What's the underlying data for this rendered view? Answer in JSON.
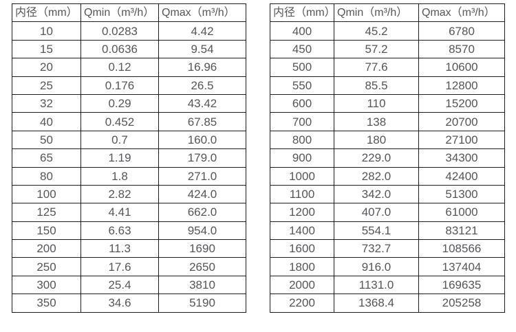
{
  "colors": {
    "border": "#1c1c1c",
    "text": "#55565a",
    "background": "#ffffff"
  },
  "chart_data": [
    {
      "type": "table",
      "title": "",
      "headers": [
        "内径（mm）",
        "Qmin（m³/h）",
        "Qmax（m³/h）"
      ],
      "rows": [
        [
          "10",
          "0.0283",
          "4.42"
        ],
        [
          "15",
          "0.0636",
          "9.54"
        ],
        [
          "20",
          "0.12",
          "16.96"
        ],
        [
          "25",
          "0.176",
          "26.5"
        ],
        [
          "32",
          "0.29",
          "43.42"
        ],
        [
          "40",
          "0.452",
          "67.85"
        ],
        [
          "50",
          "0.7",
          "160.0"
        ],
        [
          "65",
          "1.19",
          "179.0"
        ],
        [
          "80",
          "1.8",
          "271.0"
        ],
        [
          "100",
          "2.82",
          "424.0"
        ],
        [
          "125",
          "4.41",
          "662.0"
        ],
        [
          "150",
          "6.63",
          "954.0"
        ],
        [
          "200",
          "11.3",
          "1690"
        ],
        [
          "250",
          "17.6",
          "2650"
        ],
        [
          "300",
          "25.4",
          "3810"
        ],
        [
          "350",
          "34.6",
          "5190"
        ]
      ]
    },
    {
      "type": "table",
      "title": "",
      "headers": [
        "内径（mm）",
        "Qmin（m³/h）",
        "Qmax（m³/h）"
      ],
      "rows": [
        [
          "400",
          "45.2",
          "6780"
        ],
        [
          "450",
          "57.2",
          "8570"
        ],
        [
          "500",
          "77.6",
          "10600"
        ],
        [
          "550",
          "85.5",
          "12800"
        ],
        [
          "600",
          "110",
          "15200"
        ],
        [
          "700",
          "138",
          "20700"
        ],
        [
          "800",
          "180",
          "27100"
        ],
        [
          "900",
          "229.0",
          "34300"
        ],
        [
          "1000",
          "282.0",
          "42400"
        ],
        [
          "1100",
          "342.0",
          "51300"
        ],
        [
          "1200",
          "407.0",
          "61000"
        ],
        [
          "1400",
          "554.1",
          "83121"
        ],
        [
          "1600",
          "732.7",
          "108566"
        ],
        [
          "1800",
          "916.0",
          "137404"
        ],
        [
          "2000",
          "1131.0",
          "169635"
        ],
        [
          "2200",
          "1368.4",
          "205258"
        ]
      ]
    }
  ]
}
